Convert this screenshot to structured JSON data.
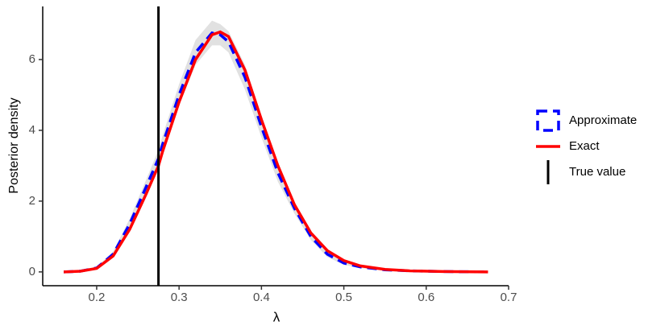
{
  "chart_data": {
    "type": "line",
    "xlabel": "λ",
    "ylabel": "Posterior density",
    "x": [
      0.16,
      0.18,
      0.2,
      0.22,
      0.24,
      0.26,
      0.275,
      0.28,
      0.3,
      0.32,
      0.34,
      0.35,
      0.36,
      0.38,
      0.4,
      0.42,
      0.44,
      0.46,
      0.48,
      0.5,
      0.52,
      0.55,
      0.58,
      0.62,
      0.675
    ],
    "series": [
      {
        "name": "Approximate",
        "color": "#0000ff",
        "dashed": true,
        "values": [
          0,
          0.02,
          0.11,
          0.5,
          1.35,
          2.4,
          3.2,
          3.6,
          5.0,
          6.2,
          6.75,
          6.7,
          6.5,
          5.5,
          4.1,
          2.8,
          1.8,
          1.0,
          0.5,
          0.25,
          0.14,
          0.06,
          0.03,
          0.01,
          0
        ]
      },
      {
        "name": "Exact",
        "color": "#ff0000",
        "dashed": false,
        "values": [
          0,
          0.02,
          0.1,
          0.45,
          1.2,
          2.2,
          3.0,
          3.4,
          4.8,
          6.0,
          6.7,
          6.78,
          6.65,
          5.7,
          4.3,
          3.0,
          1.9,
          1.1,
          0.6,
          0.32,
          0.17,
          0.07,
          0.03,
          0.01,
          0
        ]
      }
    ],
    "band": {
      "color": "#d9d9d9",
      "upper": [
        0,
        0.03,
        0.14,
        0.58,
        1.5,
        2.6,
        3.45,
        3.85,
        5.3,
        6.55,
        7.1,
        7.0,
        6.8,
        5.85,
        4.4,
        3.05,
        1.95,
        1.1,
        0.58,
        0.3,
        0.17,
        0.08,
        0.04,
        0.02,
        0
      ],
      "lower": [
        0,
        0.01,
        0.08,
        0.42,
        1.2,
        2.2,
        2.95,
        3.35,
        4.7,
        5.85,
        6.4,
        6.4,
        6.2,
        5.15,
        3.8,
        2.55,
        1.65,
        0.9,
        0.42,
        0.2,
        0.11,
        0.04,
        0.02,
        0,
        0
      ]
    },
    "vline": {
      "name": "True value",
      "value": 0.275,
      "color": "#000000"
    },
    "xlim": [
      0.1345,
      0.7
    ],
    "xticks": [
      0.2,
      0.3,
      0.4,
      0.5,
      0.6,
      0.7
    ],
    "ylim": [
      -0.39,
      7.5
    ],
    "yticks": [
      0,
      2,
      4,
      6
    ]
  }
}
